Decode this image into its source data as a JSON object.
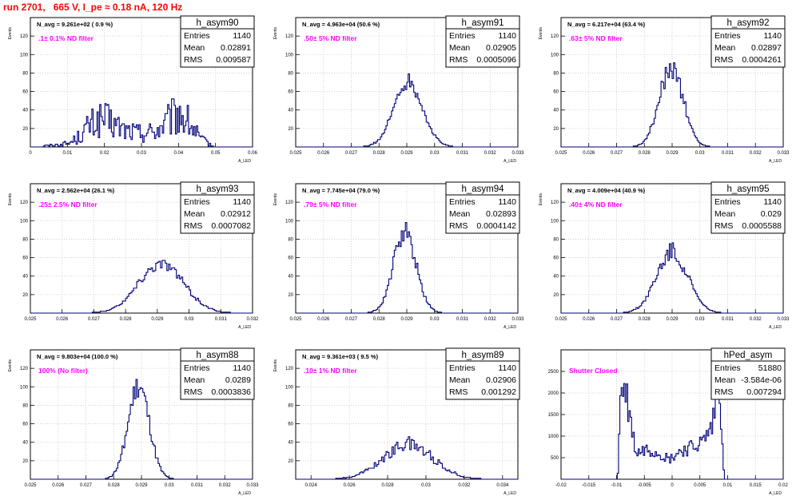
{
  "run_title": "run 2701,   665 V, I_pe ≈ 0.18 nA, 120 Hz",
  "stat_labels": {
    "entries": "Entries",
    "mean": "Mean",
    "rms": "RMS"
  },
  "colors": {
    "title": "#ff0000",
    "histogram": "#00007a",
    "annotation": "#ff00ff"
  },
  "chart_data": [
    {
      "type": "bar",
      "name": "h_asym90",
      "navg": "N_avg = 9.261e+02 ( 0.9 %)",
      "filter": ".1± 0.1% ND filter",
      "stats": {
        "entries": "1140",
        "mean": "0.02891",
        "rms": "0.009587"
      },
      "xlabel": "A_LED",
      "ylabel": "Events",
      "grid": true,
      "xlim": [
        0,
        0.06
      ],
      "ylim": [
        0,
        140
      ],
      "xticks": [
        0,
        0.01,
        0.02,
        0.03,
        0.04,
        0.05,
        0.06
      ],
      "yticks": [
        20,
        40,
        60,
        80,
        100,
        120
      ],
      "x": [
        0.0035,
        0.0105,
        0.0138,
        0.0156,
        0.0195,
        0.0257,
        0.0293,
        0.0337,
        0.0375,
        0.0402,
        0.0435,
        0.0462,
        0.0495
      ],
      "values": [
        1,
        4,
        13,
        22,
        30,
        18,
        15,
        17,
        28,
        37,
        22,
        8,
        1
      ],
      "stat_sigma_x": 0.3,
      "hist_noise": 0.7
    },
    {
      "type": "bar",
      "name": "h_asym91",
      "navg": "N_avg = 4.963e+04 (50.6 %)",
      "filter": ".50± 5% ND filter",
      "stats": {
        "entries": "1140",
        "mean": "0.02905",
        "rms": "0.0005096"
      },
      "xlabel": "A_LED",
      "ylabel": "Events",
      "grid": true,
      "xlim": [
        0.025,
        0.033
      ],
      "ylim": [
        0,
        140
      ],
      "xticks": [
        0.025,
        0.026,
        0.027,
        0.028,
        0.029,
        0.03,
        0.031,
        0.032,
        0.033
      ],
      "yticks": [
        20,
        40,
        60,
        80,
        100,
        120
      ],
      "mean_x": 0.02905,
      "sigma_x": 0.00051,
      "peak": 72,
      "bins": 160,
      "hist_noise": 0.14
    },
    {
      "type": "bar",
      "name": "h_asym92",
      "navg": "N_avg = 6.217e+04 (63.4 %)",
      "filter": ".63± 5% ND filter",
      "stats": {
        "entries": "1140",
        "mean": "0.02897",
        "rms": "0.0004261"
      },
      "xlabel": "A_LED",
      "ylabel": "Events",
      "grid": true,
      "xlim": [
        0.025,
        0.033
      ],
      "ylim": [
        0,
        140
      ],
      "xticks": [
        0.025,
        0.026,
        0.027,
        0.028,
        0.029,
        0.03,
        0.031,
        0.032,
        0.033
      ],
      "yticks": [
        20,
        40,
        60,
        80,
        100,
        120
      ],
      "mean_x": 0.02897,
      "sigma_x": 0.00043,
      "peak": 86,
      "bins": 160,
      "hist_noise": 0.14
    },
    {
      "type": "bar",
      "name": "h_asym93",
      "navg": "N_avg = 2.562e+04 (26.1 %)",
      "filter": ".25± 2.5% ND filter",
      "stats": {
        "entries": "1140",
        "mean": "0.02912",
        "rms": "0.0007082"
      },
      "xlabel": "A_LED",
      "ylabel": "Events",
      "grid": true,
      "xlim": [
        0.025,
        0.032
      ],
      "ylim": [
        0,
        140
      ],
      "xticks": [
        0.025,
        0.026,
        0.027,
        0.028,
        0.029,
        0.03,
        0.031,
        0.032
      ],
      "yticks": [
        20,
        40,
        60,
        80,
        100,
        120
      ],
      "mean_x": 0.02912,
      "sigma_x": 0.00071,
      "peak": 53,
      "bins": 140,
      "hist_noise": 0.12
    },
    {
      "type": "bar",
      "name": "h_asym94",
      "navg": "N_avg = 7.745e+04 (79.0 %)",
      "filter": ".79± 5% ND filter",
      "stats": {
        "entries": "1140",
        "mean": "0.02893",
        "rms": "0.0004142"
      },
      "xlabel": "A_LED",
      "ylabel": "Events",
      "grid": true,
      "xlim": [
        0.025,
        0.033
      ],
      "ylim": [
        0,
        140
      ],
      "xticks": [
        0.025,
        0.026,
        0.027,
        0.028,
        0.029,
        0.03,
        0.031,
        0.032,
        0.033
      ],
      "yticks": [
        20,
        40,
        60,
        80,
        100,
        120
      ],
      "mean_x": 0.02893,
      "sigma_x": 0.00041,
      "peak": 88,
      "bins": 160,
      "hist_noise": 0.14
    },
    {
      "type": "bar",
      "name": "h_asym95",
      "navg": "N_avg = 4.009e+04 (40.9 %)",
      "filter": ".40± 4% ND filter",
      "stats": {
        "entries": "1140",
        "mean": "0.029",
        "rms": "0.0005588"
      },
      "xlabel": "A_LED",
      "ylabel": "Events",
      "grid": true,
      "xlim": [
        0.025,
        0.033
      ],
      "ylim": [
        0,
        140
      ],
      "xticks": [
        0.025,
        0.026,
        0.027,
        0.028,
        0.029,
        0.03,
        0.031,
        0.032,
        0.033
      ],
      "yticks": [
        20,
        40,
        60,
        80,
        100,
        120
      ],
      "mean_x": 0.029,
      "sigma_x": 0.00056,
      "peak": 66,
      "bins": 160,
      "hist_noise": 0.16
    },
    {
      "type": "bar",
      "name": "h_asym88",
      "navg": "N_avg = 9.803e+04 (100.0 %)",
      "filter": "100% (No filter)",
      "stats": {
        "entries": "1140",
        "mean": "0.0289",
        "rms": "0.0003836"
      },
      "xlabel": "A_LED",
      "ylabel": "Events",
      "grid": true,
      "xlim": [
        0.025,
        0.033
      ],
      "ylim": [
        0,
        140
      ],
      "xticks": [
        0.025,
        0.026,
        0.027,
        0.028,
        0.029,
        0.03,
        0.031,
        0.032,
        0.033
      ],
      "yticks": [
        20,
        40,
        60,
        80,
        100,
        120
      ],
      "mean_x": 0.0289,
      "sigma_x": 0.00038,
      "peak": 100,
      "bins": 160,
      "hist_noise": 0.14
    },
    {
      "type": "bar",
      "name": "h_asym89",
      "navg": "N_avg = 9.361e+03 ( 9.5 %)",
      "filter": ".10± 1% ND filter",
      "stats": {
        "entries": "1140",
        "mean": "0.02906",
        "rms": "0.001292"
      },
      "xlabel": "A_LED",
      "ylabel": "Events",
      "grid": true,
      "xlim": [
        0.0232,
        0.0348
      ],
      "ylim": [
        0,
        140
      ],
      "xticks": [
        0.024,
        0.026,
        0.028,
        0.03,
        0.032,
        0.034
      ],
      "yticks": [
        20,
        40,
        60,
        80,
        100,
        120
      ],
      "mean_x": 0.02906,
      "sigma_x": 0.00129,
      "peak": 38,
      "bins": 150,
      "hist_noise": 0.22
    },
    {
      "type": "bar",
      "name": "hPed_asym",
      "navg": "",
      "filter": "Shutter Closed",
      "stats": {
        "entries": "51880",
        "mean": "-3.584e-06",
        "rms": "0.007294"
      },
      "xlabel": "A_LED",
      "ylabel": "",
      "grid": true,
      "xlim": [
        -0.02,
        0.02
      ],
      "ylim": [
        0,
        3000
      ],
      "xticks": [
        -0.02,
        -0.015,
        -0.01,
        -0.005,
        0,
        0.005,
        0.01,
        0.015,
        0.02
      ],
      "yticks": [
        500,
        1000,
        1500,
        2000,
        2500
      ],
      "x": [
        -0.0098,
        -0.0092,
        -0.0082,
        -0.0065,
        -0.0045,
        -0.0025,
        -0.0005,
        0.0015,
        0.0035,
        0.0055,
        0.0072,
        0.0085,
        0.0094
      ],
      "values": [
        0,
        2200,
        1900,
        600,
        700,
        620,
        450,
        650,
        720,
        850,
        1200,
        2300,
        0
      ],
      "stat_sigma_x": 0.25,
      "hist_noise": 0.25
    }
  ]
}
